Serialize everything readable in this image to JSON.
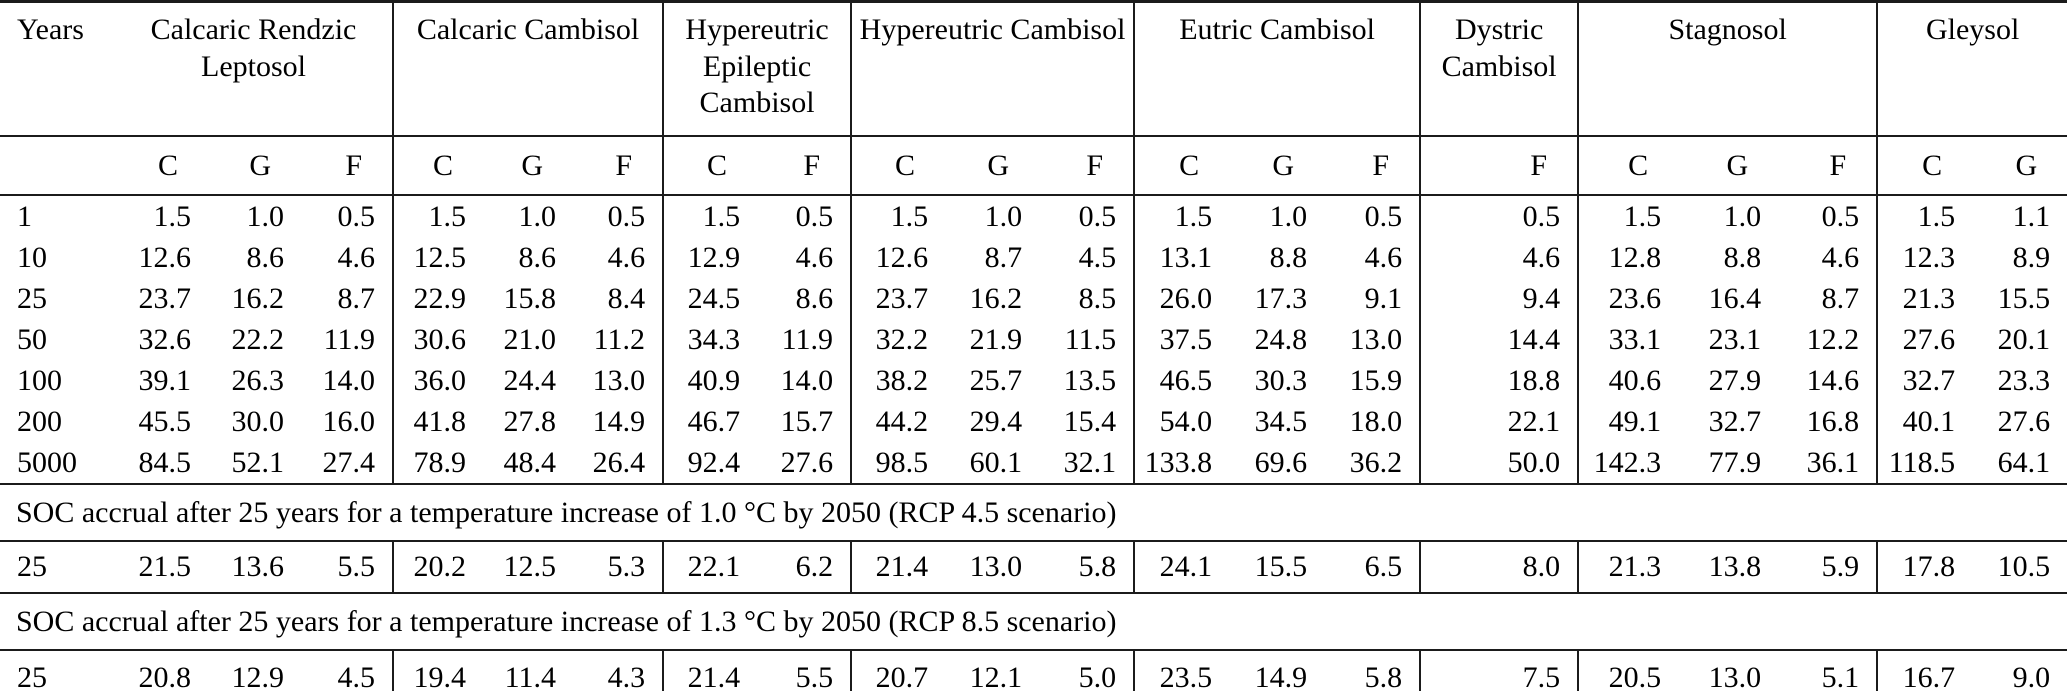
{
  "colors": {
    "rule": "#1b1b1b",
    "text": "#000000",
    "background": "#ffffff"
  },
  "table": {
    "years_label": "Years",
    "groups": [
      {
        "name": "Calcaric Rendzic Leptosol",
        "cols": [
          "C",
          "G",
          "F"
        ]
      },
      {
        "name": "Calcaric Cambisol",
        "cols": [
          "C",
          "G",
          "F"
        ]
      },
      {
        "name": "Hypereutric Epileptic Cambisol",
        "cols": [
          "C",
          "F"
        ]
      },
      {
        "name": "Hypereutric Cambisol",
        "cols": [
          "C",
          "G",
          "F"
        ]
      },
      {
        "name": "Eutric Cambisol",
        "cols": [
          "C",
          "G",
          "F"
        ]
      },
      {
        "name": "Dystric Cambisol",
        "cols": [
          "F"
        ]
      },
      {
        "name": "Stagnosol",
        "cols": [
          "C",
          "G",
          "F"
        ]
      },
      {
        "name": "Gleysol",
        "cols": [
          "C",
          "G"
        ]
      }
    ],
    "simulation_rows": [
      {
        "years": "1",
        "values": [
          "1.5",
          "1.0",
          "0.5",
          "1.5",
          "1.0",
          "0.5",
          "1.5",
          "0.5",
          "1.5",
          "1.0",
          "0.5",
          "1.5",
          "1.0",
          "0.5",
          "0.5",
          "1.5",
          "1.0",
          "0.5",
          "1.5",
          "1.1"
        ]
      },
      {
        "years": "10",
        "values": [
          "12.6",
          "8.6",
          "4.6",
          "12.5",
          "8.6",
          "4.6",
          "12.9",
          "4.6",
          "12.6",
          "8.7",
          "4.5",
          "13.1",
          "8.8",
          "4.6",
          "4.6",
          "12.8",
          "8.8",
          "4.6",
          "12.3",
          "8.9"
        ]
      },
      {
        "years": "25",
        "values": [
          "23.7",
          "16.2",
          "8.7",
          "22.9",
          "15.8",
          "8.4",
          "24.5",
          "8.6",
          "23.7",
          "16.2",
          "8.5",
          "26.0",
          "17.3",
          "9.1",
          "9.4",
          "23.6",
          "16.4",
          "8.7",
          "21.3",
          "15.5"
        ]
      },
      {
        "years": "50",
        "values": [
          "32.6",
          "22.2",
          "11.9",
          "30.6",
          "21.0",
          "11.2",
          "34.3",
          "11.9",
          "32.2",
          "21.9",
          "11.5",
          "37.5",
          "24.8",
          "13.0",
          "14.4",
          "33.1",
          "23.1",
          "12.2",
          "27.6",
          "20.1"
        ]
      },
      {
        "years": "100",
        "values": [
          "39.1",
          "26.3",
          "14.0",
          "36.0",
          "24.4",
          "13.0",
          "40.9",
          "14.0",
          "38.2",
          "25.7",
          "13.5",
          "46.5",
          "30.3",
          "15.9",
          "18.8",
          "40.6",
          "27.9",
          "14.6",
          "32.7",
          "23.3"
        ]
      },
      {
        "years": "200",
        "values": [
          "45.5",
          "30.0",
          "16.0",
          "41.8",
          "27.8",
          "14.9",
          "46.7",
          "15.7",
          "44.2",
          "29.4",
          "15.4",
          "54.0",
          "34.5",
          "18.0",
          "22.1",
          "49.1",
          "32.7",
          "16.8",
          "40.1",
          "27.6"
        ]
      },
      {
        "years": "5000",
        "values": [
          "84.5",
          "52.1",
          "27.4",
          "78.9",
          "48.4",
          "26.4",
          "92.4",
          "27.6",
          "98.5",
          "60.1",
          "32.1",
          "133.8",
          "69.6",
          "36.2",
          "50.0",
          "142.3",
          "77.9",
          "36.1",
          "118.5",
          "64.1"
        ]
      }
    ],
    "scenario_sections": [
      {
        "note": "SOC accrual after 25 years for a temperature increase of 1.0 °C by 2050 (RCP 4.5 scenario)",
        "row": {
          "years": "25",
          "values": [
            "21.5",
            "13.6",
            "5.5",
            "20.2",
            "12.5",
            "5.3",
            "22.1",
            "6.2",
            "21.4",
            "13.0",
            "5.8",
            "24.1",
            "15.5",
            "6.5",
            "8.0",
            "21.3",
            "13.8",
            "5.9",
            "17.8",
            "10.5"
          ]
        }
      },
      {
        "note": "SOC accrual after 25 years for a temperature increase of 1.3 °C by 2050 (RCP 8.5 scenario)",
        "row": {
          "years": "25",
          "values": [
            "20.8",
            "12.9",
            "4.5",
            "19.4",
            "11.4",
            "4.3",
            "21.4",
            "5.5",
            "20.7",
            "12.1",
            "5.0",
            "23.5",
            "14.9",
            "5.8",
            "7.5",
            "20.5",
            "13.0",
            "5.1",
            "16.7",
            "9.0"
          ]
        }
      }
    ]
  }
}
